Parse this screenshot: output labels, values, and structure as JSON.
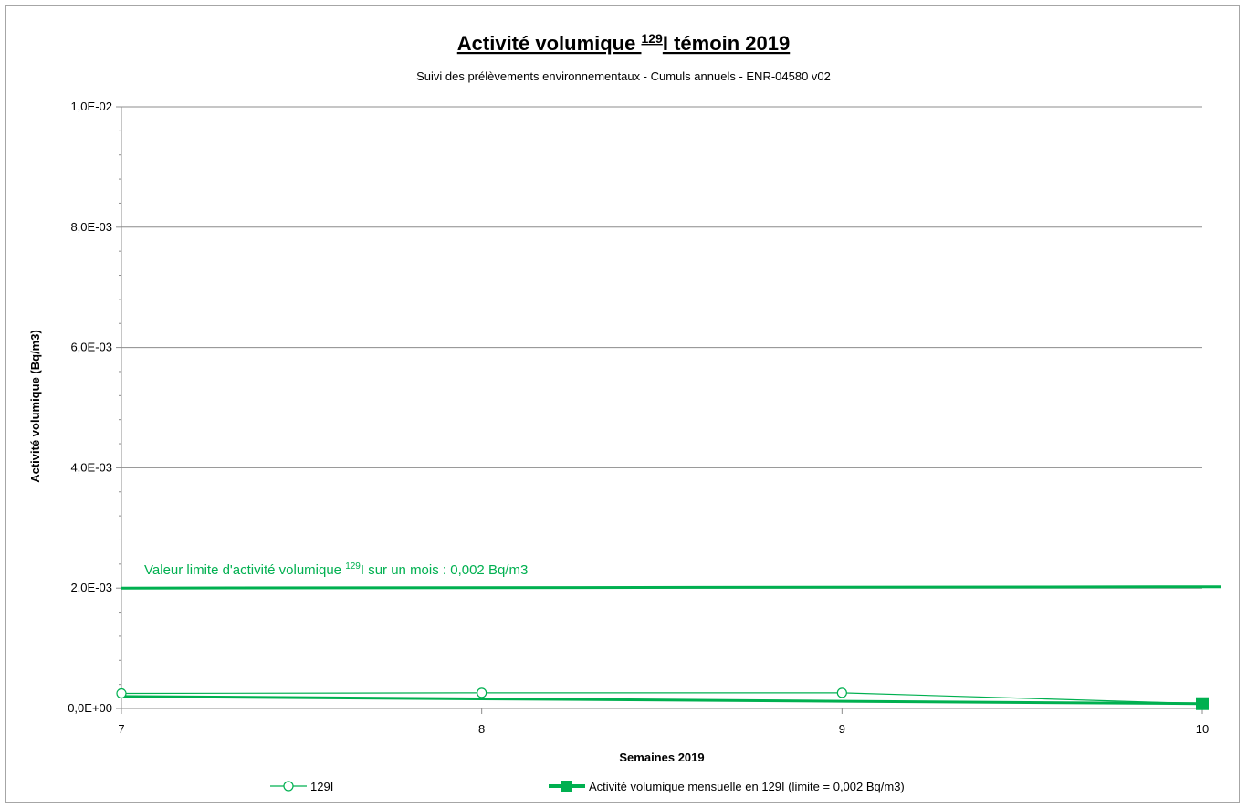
{
  "chart_data": {
    "type": "line",
    "title": {
      "main": "Activité volumique ",
      "sup": "129",
      "rest": "I témoin 2019"
    },
    "subtitle": "Suivi des prélèvements environnementaux - Cumuls annuels - ENR-04580 v02",
    "xlabel": "Semaines 2019",
    "ylabel": "Activité volumique (Bq/m3)",
    "x": [
      7,
      8,
      9,
      10
    ],
    "x_ticks": [
      "7",
      "8",
      "9",
      "10"
    ],
    "xlim": [
      7,
      10
    ],
    "ylim": [
      0,
      0.01
    ],
    "y_ticks": [
      0,
      0.002,
      0.004,
      0.006,
      0.008,
      0.01
    ],
    "y_tick_labels": [
      "0,0E+00",
      "2,0E-03",
      "4,0E-03",
      "6,0E-03",
      "8,0E-03",
      "1,0E-02"
    ],
    "grid": true,
    "legend_position": "bottom",
    "series": [
      {
        "name": "129I",
        "values": [
          0.00025,
          0.00026,
          0.00026,
          8e-05
        ],
        "color": "#00b050",
        "marker": "circle-open"
      },
      {
        "name": "Activité volumique mensuelle en 129I  (limite = 0,002 Bq/m3)",
        "values": [
          0.0002,
          0.00016,
          0.00012,
          8e-05
        ],
        "color": "#00b050",
        "marker": "square-filled"
      }
    ],
    "limit_line": {
      "value": 0.002,
      "color": "#00b050",
      "label_prefix": "Valeur limite d'activité volumique ",
      "label_sup": "129",
      "label_suffix": "I sur un mois : 0,002 Bq/m3"
    }
  }
}
